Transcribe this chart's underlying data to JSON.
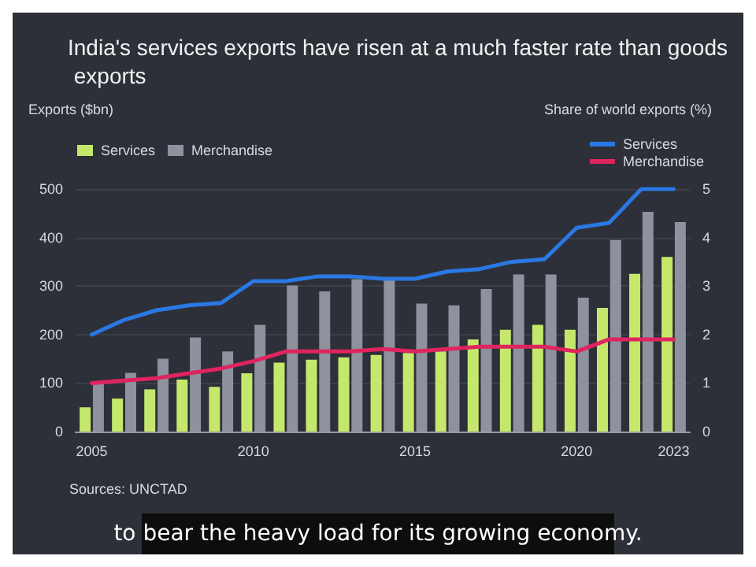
{
  "chart_data": {
    "type": "bar",
    "title": "India's services exports have risen at a much faster rate than goods exports",
    "ylabel": "Exports ($bn)",
    "y2label": "Share of world exports (%)",
    "categories": [
      "2005",
      null,
      null,
      null,
      null,
      "2010",
      null,
      null,
      null,
      null,
      "2015",
      null,
      null,
      null,
      null,
      "2020",
      null,
      null,
      "2023"
    ],
    "series": [
      {
        "name": "Services",
        "color": "#c5e86c",
        "values": [
          50,
          68,
          87,
          107,
          92,
          120,
          142,
          148,
          153,
          158,
          162,
          165,
          190,
          210,
          220,
          210,
          255,
          325,
          360
        ]
      },
      {
        "name": "Merchandise",
        "color": "#8d929e",
        "values": [
          100,
          121,
          150,
          194,
          165,
          220,
          301,
          289,
          314,
          318,
          264,
          260,
          294,
          324,
          324,
          276,
          395,
          453,
          432
        ]
      },
      {
        "name": "Services",
        "type": "line",
        "axis": "y2",
        "color": "#2a78e4",
        "values": [
          2.0,
          2.3,
          2.5,
          2.6,
          2.65,
          3.1,
          3.1,
          3.2,
          3.2,
          3.15,
          3.15,
          3.3,
          3.35,
          3.5,
          3.55,
          4.2,
          4.3,
          5.0,
          5.0
        ]
      },
      {
        "name": "Merchandise",
        "type": "line",
        "axis": "y2",
        "color": "#e0245e",
        "values": [
          1.0,
          1.05,
          1.1,
          1.2,
          1.3,
          1.45,
          1.65,
          1.65,
          1.65,
          1.7,
          1.65,
          1.7,
          1.75,
          1.75,
          1.75,
          1.65,
          1.9,
          1.9,
          1.9
        ]
      }
    ],
    "ylim": [
      0,
      500
    ],
    "yticks": [
      0,
      100,
      200,
      300,
      400,
      500
    ],
    "y2lim": [
      0,
      5
    ],
    "y2ticks": [
      0,
      1,
      2,
      3,
      4,
      5
    ],
    "grid": "y",
    "legend": "top",
    "marker": "none",
    "line_style": "solid",
    "annotations": [
      "Sources: UNCTAD",
      "to bear the heavy load for its growing economy."
    ]
  }
}
